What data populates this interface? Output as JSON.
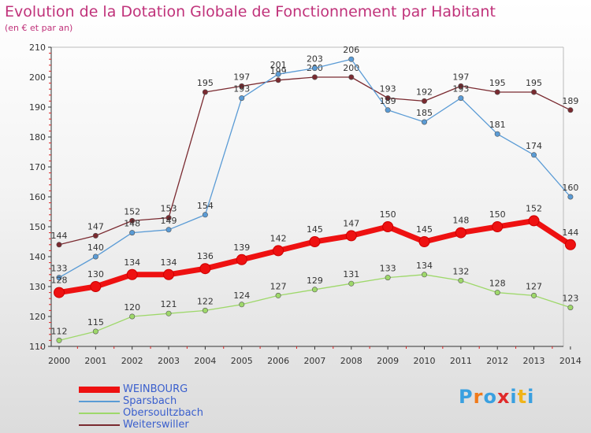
{
  "chart_data": {
    "type": "line",
    "title": "Evolution de la Dotation Globale de Fonctionnement par Habitant",
    "subtitle": "(en € et par an)",
    "xlabel": "",
    "ylabel": "",
    "x": [
      "2000",
      "2001",
      "2002",
      "2003",
      "2004",
      "2005",
      "2006",
      "2007",
      "2008",
      "2009",
      "2010",
      "2011",
      "2012",
      "2013",
      "2014"
    ],
    "ylim": [
      110,
      210
    ],
    "yticks": [
      110,
      120,
      130,
      140,
      150,
      160,
      170,
      180,
      190,
      200,
      210
    ],
    "grid": false,
    "legend_position": "bottom-left",
    "series": [
      {
        "name": "Weiterswiller",
        "color": "#7a2a30",
        "values": [
          144,
          147,
          152,
          153,
          195,
          197,
          199,
          200,
          200,
          193,
          192,
          197,
          195,
          195,
          189
        ]
      },
      {
        "name": "Sparsbach",
        "color": "#5a9bd5",
        "values": [
          133,
          140,
          148,
          149,
          154,
          193,
          201,
          203,
          206,
          189,
          185,
          193,
          181,
          174,
          160
        ]
      },
      {
        "name": "Obersoultzbach",
        "color": "#9ed86a",
        "values": [
          112,
          115,
          120,
          121,
          122,
          124,
          127,
          129,
          131,
          133,
          134,
          132,
          128,
          127,
          123
        ]
      },
      {
        "name": "WEINBOURG",
        "color": "#ee1111",
        "values": [
          128,
          130,
          134,
          134,
          136,
          139,
          142,
          145,
          147,
          150,
          145,
          148,
          150,
          152,
          144
        ]
      }
    ],
    "legend_order": [
      "WEINBOURG",
      "Sparsbach",
      "Obersoultzbach",
      "Weiterswiller"
    ]
  },
  "logo": {
    "letters": [
      "P",
      "r",
      "o",
      "x",
      "i",
      "t",
      "i"
    ],
    "colors": [
      "#3aa0e0",
      "#f07a1a",
      "#3aa0e0",
      "#e02a2a",
      "#3aa0e0",
      "#f0b41a",
      "#3aa0e0"
    ]
  }
}
